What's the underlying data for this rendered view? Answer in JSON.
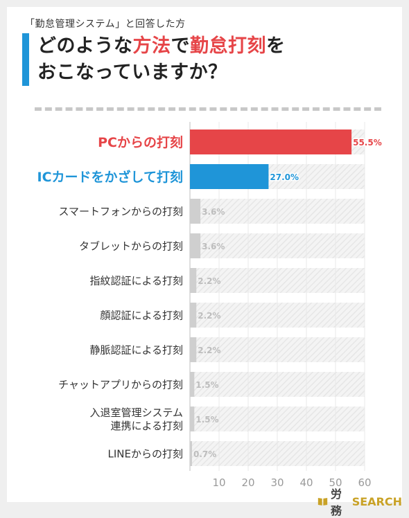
{
  "header": {
    "subtitle": "「勤怠管理システム」と回答した方",
    "title_line1_a": "どのような",
    "title_line1_b": "方法",
    "title_line1_c": "で",
    "title_line1_d": "勤怠打刻",
    "title_line1_e": "を",
    "title_line2": "おこなっていますか？"
  },
  "brand": {
    "name_jp": "労務",
    "name_en": "SEARCH"
  },
  "colors": {
    "accent_red": "#e64548",
    "accent_blue": "#1f95d8",
    "bar_gray": "#cfcfcf",
    "label_gray": "#bdbdbd"
  },
  "chart_data": {
    "type": "bar",
    "orientation": "horizontal",
    "categories": [
      "PCからの打刻",
      "ICカードをかざして打刻",
      "スマートフォンからの打刻",
      "タブレットからの打刻",
      "指紋認証による打刻",
      "顔認証による打刻",
      "静脈認証による打刻",
      "チャットアプリからの打刻",
      "入退室管理システム\n連携による打刻",
      "LINEからの打刻"
    ],
    "values": [
      55.5,
      27.0,
      3.6,
      3.6,
      2.2,
      2.2,
      2.2,
      1.5,
      1.5,
      0.7
    ],
    "value_labels": [
      "55.5%",
      "27.0%",
      "3.6%",
      "3.6%",
      "2.2%",
      "2.2%",
      "2.2%",
      "1.5%",
      "1.5%",
      "0.7%"
    ],
    "xlim": [
      0,
      60
    ],
    "xticks": [
      "10",
      "20",
      "30",
      "40",
      "50",
      "60"
    ],
    "grid": true
  }
}
